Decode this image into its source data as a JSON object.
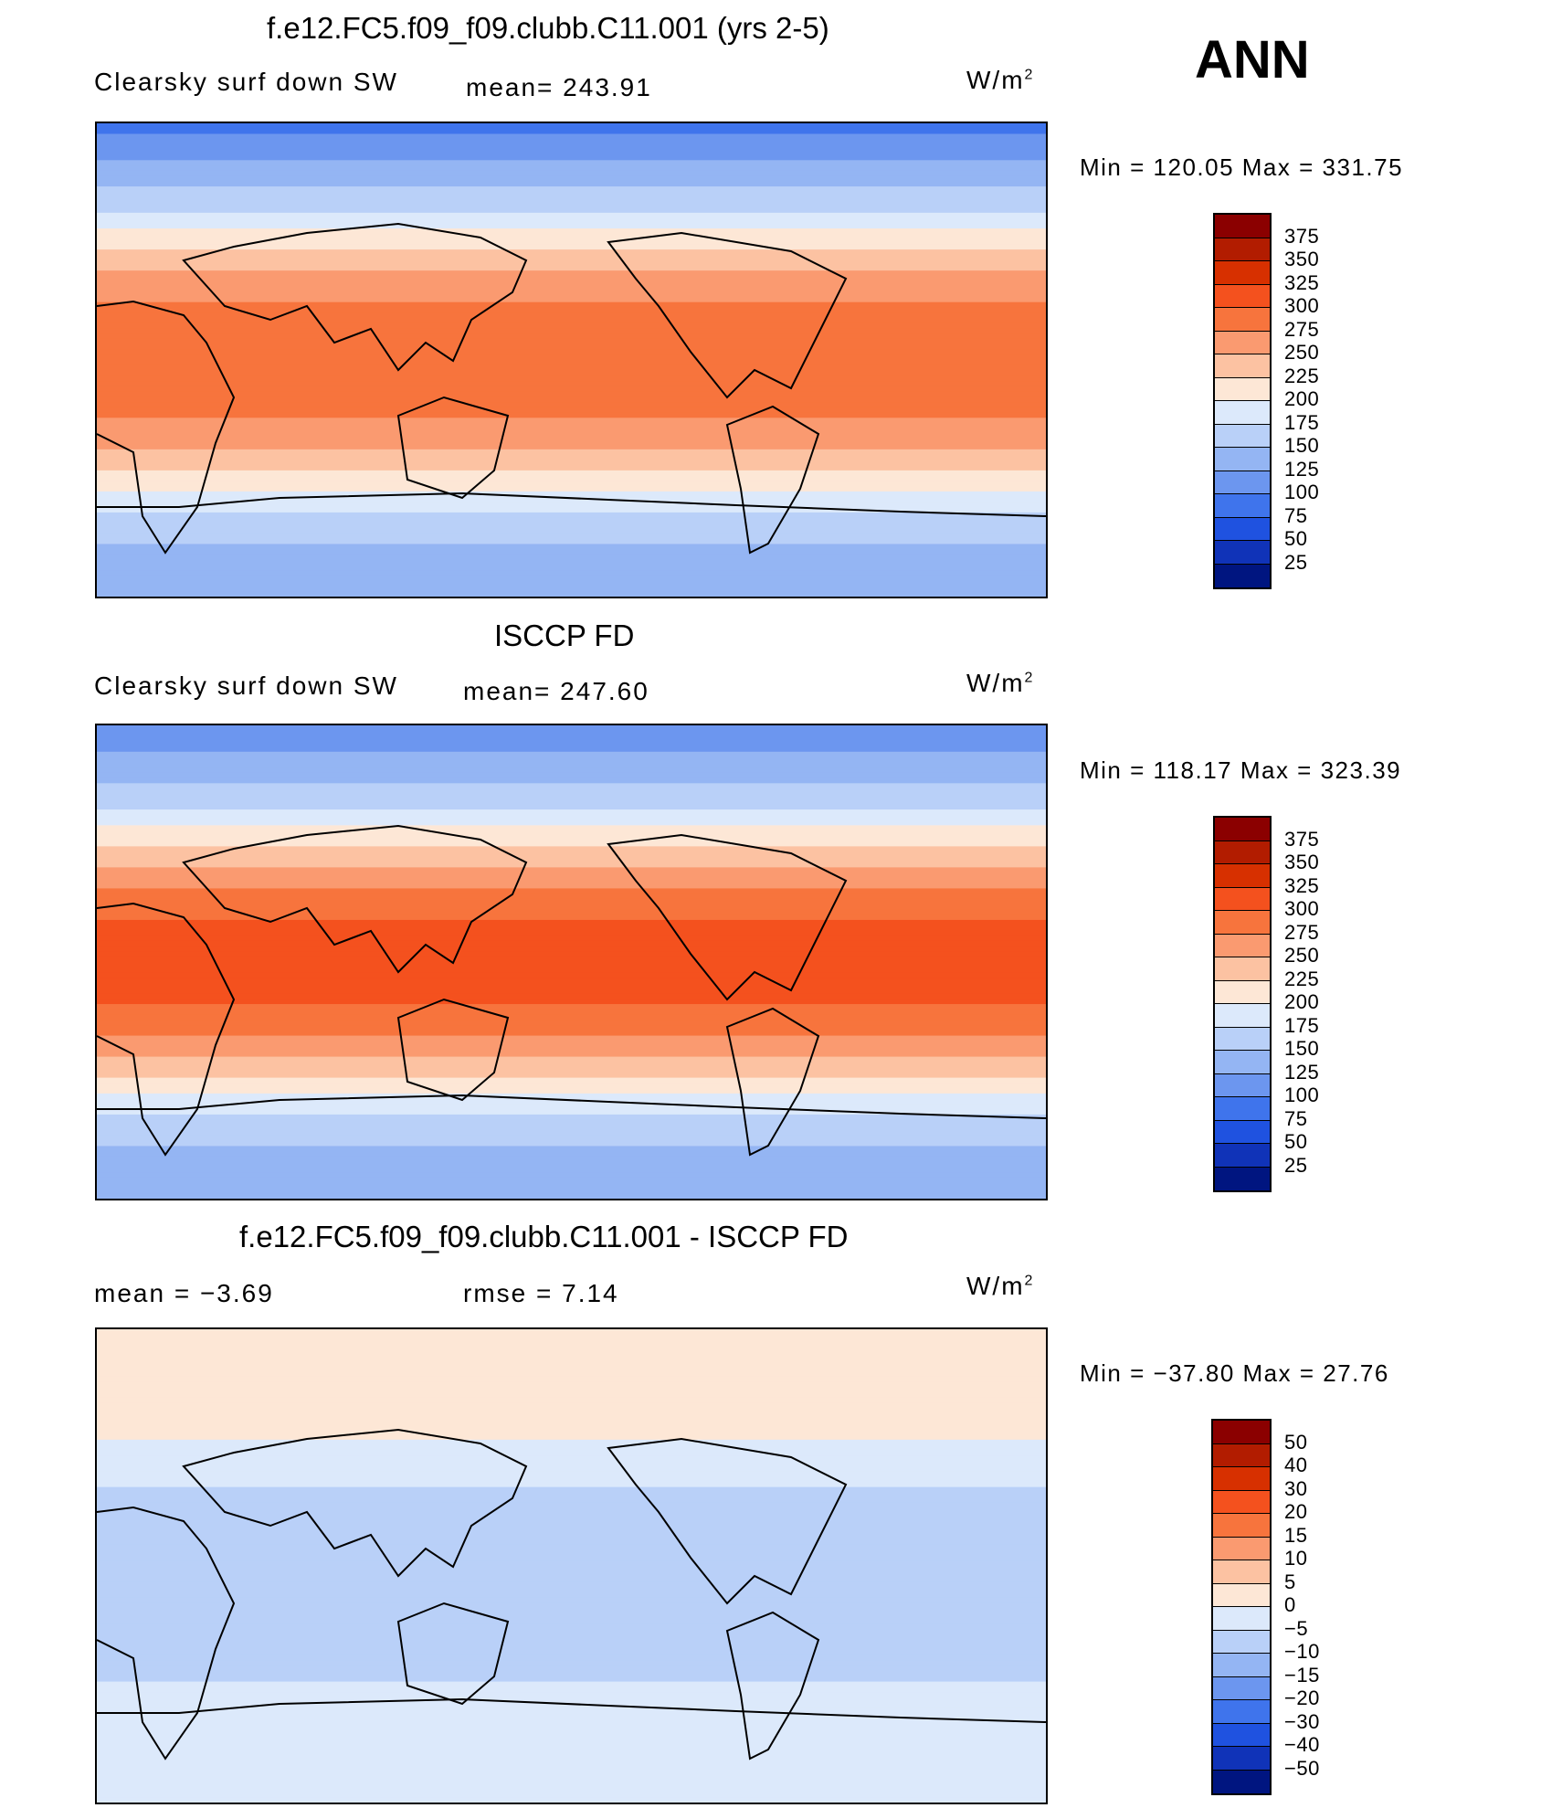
{
  "season": "ANN",
  "panels": [
    {
      "title": "f.e12.FC5.f09_f09.clubb.C11.001 (yrs 2-5)",
      "variable": "Clearsky surf down SW",
      "stat_text": "mean= 243.91",
      "units_base": "W/m",
      "units_exp": "2",
      "minmax": "Min  =  120.05  Max  =  331.75",
      "colorbar": {
        "labels": [
          "375",
          "350",
          "325",
          "300",
          "275",
          "250",
          "225",
          "200",
          "175",
          "150",
          "125",
          "100",
          "75",
          "50",
          "25"
        ],
        "colors": [
          "#8b0000",
          "#b21c00",
          "#d73000",
          "#f4511e",
          "#f7743d",
          "#fa9a70",
          "#fcc2a2",
          "#fde7d6",
          "#dce9fb",
          "#b9d0f8",
          "#94b5f3",
          "#6c96ef",
          "#3f74ec",
          "#1f52e0",
          "#1033b8",
          "#001580"
        ]
      },
      "chart_data": {
        "type": "heatmap",
        "title": "f.e12.FC5.f09_f09.clubb.C11.001 (yrs 2-5)",
        "subtitle": "Clearsky surf down SW",
        "mean": 243.91,
        "min": 120.05,
        "max": 331.75,
        "units": "W/m2",
        "zonal_profile": [
          {
            "lat": 90,
            "value": 90
          },
          {
            "lat": 75,
            "value": 130
          },
          {
            "lat": 60,
            "value": 160
          },
          {
            "lat": 45,
            "value": 215
          },
          {
            "lat": 30,
            "value": 260
          },
          {
            "lat": 15,
            "value": 290
          },
          {
            "lat": 0,
            "value": 295
          },
          {
            "lat": -15,
            "value": 290
          },
          {
            "lat": -30,
            "value": 260
          },
          {
            "lat": -45,
            "value": 215
          },
          {
            "lat": -60,
            "value": 165
          },
          {
            "lat": -75,
            "value": 140
          },
          {
            "lat": -90,
            "value": 130
          }
        ]
      }
    },
    {
      "title": "ISCCP FD",
      "variable": "Clearsky surf down SW",
      "stat_text": "mean= 247.60",
      "units_base": "W/m",
      "units_exp": "2",
      "minmax": "Min  =  118.17  Max  =  323.39",
      "colorbar": {
        "labels": [
          "375",
          "350",
          "325",
          "300",
          "275",
          "250",
          "225",
          "200",
          "175",
          "150",
          "125",
          "100",
          "75",
          "50",
          "25"
        ],
        "colors": [
          "#8b0000",
          "#b21c00",
          "#d73000",
          "#f4511e",
          "#f7743d",
          "#fa9a70",
          "#fcc2a2",
          "#fde7d6",
          "#dce9fb",
          "#b9d0f8",
          "#94b5f3",
          "#6c96ef",
          "#3f74ec",
          "#1f52e0",
          "#1033b8",
          "#001580"
        ]
      },
      "chart_data": {
        "type": "heatmap",
        "title": "ISCCP FD",
        "subtitle": "Clearsky surf down SW",
        "mean": 247.6,
        "min": 118.17,
        "max": 323.39,
        "units": "W/m2",
        "zonal_profile": [
          {
            "lat": 90,
            "value": 100
          },
          {
            "lat": 75,
            "value": 135
          },
          {
            "lat": 60,
            "value": 170
          },
          {
            "lat": 45,
            "value": 220
          },
          {
            "lat": 30,
            "value": 270
          },
          {
            "lat": 15,
            "value": 300
          },
          {
            "lat": 0,
            "value": 305
          },
          {
            "lat": -15,
            "value": 300
          },
          {
            "lat": -30,
            "value": 270
          },
          {
            "lat": -45,
            "value": 220
          },
          {
            "lat": -60,
            "value": 165
          },
          {
            "lat": -75,
            "value": 140
          },
          {
            "lat": -90,
            "value": 125
          }
        ]
      }
    },
    {
      "title": "f.e12.FC5.f09_f09.clubb.C11.001 - ISCCP FD",
      "stat_text": "mean  =     −3.69",
      "stat2_text": "rmse  =      7.14",
      "units_base": "W/m",
      "units_exp": "2",
      "minmax": "Min  =  −37.80  Max  =    27.76",
      "colorbar": {
        "labels": [
          "50",
          "40",
          "30",
          "20",
          "15",
          "10",
          "5",
          "0",
          "−5",
          "−10",
          "−15",
          "−20",
          "−30",
          "−40",
          "−50"
        ],
        "colors": [
          "#8b0000",
          "#b21c00",
          "#d73000",
          "#f4511e",
          "#f7743d",
          "#fa9a70",
          "#fcc2a2",
          "#fde7d6",
          "#dce9fb",
          "#b9d0f8",
          "#94b5f3",
          "#6c96ef",
          "#3f74ec",
          "#1f52e0",
          "#1033b8",
          "#001580"
        ]
      },
      "chart_data": {
        "type": "heatmap",
        "title": "f.e12.FC5.f09_f09.clubb.C11.001 - ISCCP FD",
        "mean": -3.69,
        "rmse": 7.14,
        "min": -37.8,
        "max": 27.76,
        "units": "W/m2",
        "zonal_profile": [
          {
            "lat": 90,
            "value": 2
          },
          {
            "lat": 60,
            "value": 3
          },
          {
            "lat": 30,
            "value": -5
          },
          {
            "lat": 0,
            "value": -8
          },
          {
            "lat": -30,
            "value": -6
          },
          {
            "lat": -60,
            "value": -4
          },
          {
            "lat": -90,
            "value": -3
          }
        ]
      }
    }
  ]
}
